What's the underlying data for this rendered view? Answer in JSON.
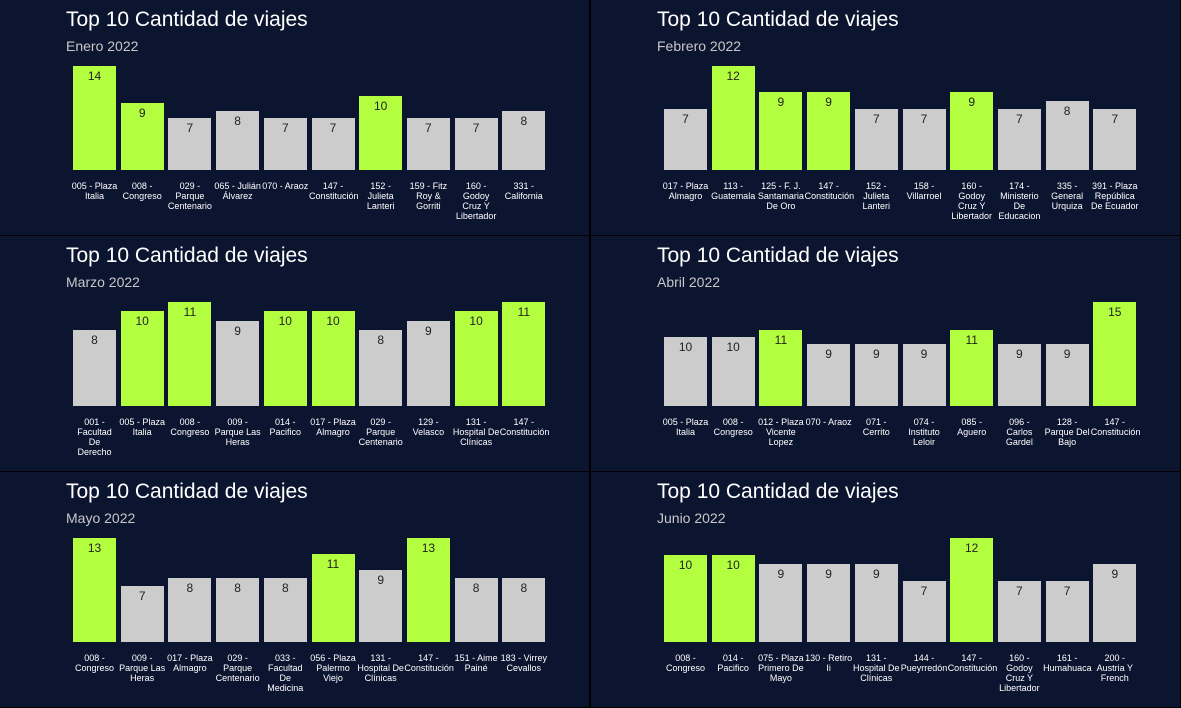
{
  "chart_data": [
    {
      "type": "bar",
      "title": "Top 10 Cantidad de viajes",
      "subtitle": "Enero 2022",
      "categories": [
        "005 - Plaza Italia",
        "008 - Congreso",
        "029 - Parque Centenario",
        "065 - Julián Álvarez",
        "070 - Araoz",
        "147 - Constitución",
        "152 - Julieta Lanteri",
        "159 - Fitz Roy & Gorriti",
        "160 - Godoy Cruz Y Libertador",
        "331 - California"
      ],
      "values": [
        14,
        9,
        7,
        8,
        7,
        7,
        10,
        7,
        7,
        8
      ],
      "colors": [
        "#b3ff3f",
        "#b3ff3f",
        "#cccccc",
        "#cccccc",
        "#cccccc",
        "#cccccc",
        "#b3ff3f",
        "#cccccc",
        "#cccccc",
        "#cccccc"
      ]
    },
    {
      "type": "bar",
      "title": "Top 10 Cantidad de viajes",
      "subtitle": "Febrero 2022",
      "categories": [
        "017 - Plaza Almagro",
        "113 - Guatemala",
        "125 - F. J. Santamaria De Oro",
        "147 - Constitución",
        "152 - Julieta Lanteri",
        "158 - Villarroel",
        "160 - Godoy Cruz Y Libertador",
        "174 - Ministerio De Educacion",
        "335 - General Urquiza",
        "391 - Plaza República De Ecuador"
      ],
      "values": [
        7,
        12,
        9,
        9,
        7,
        7,
        9,
        7,
        8,
        7
      ],
      "colors": [
        "#cccccc",
        "#b3ff3f",
        "#b3ff3f",
        "#b3ff3f",
        "#cccccc",
        "#cccccc",
        "#b3ff3f",
        "#cccccc",
        "#cccccc",
        "#cccccc"
      ]
    },
    {
      "type": "bar",
      "title": "Top 10 Cantidad de viajes",
      "subtitle": "Marzo 2022",
      "categories": [
        "001 - Facultad De Derecho",
        "005 - Plaza Italia",
        "008 - Congreso",
        "009 - Parque Las Heras",
        "014 - Pacifico",
        "017 - Plaza Almagro",
        "029 - Parque Centenario",
        "129 - Velasco",
        "131 - Hospital De Clínicas",
        "147 - Constitución"
      ],
      "values": [
        8,
        10,
        11,
        9,
        10,
        10,
        8,
        9,
        10,
        11
      ],
      "colors": [
        "#cccccc",
        "#b3ff3f",
        "#b3ff3f",
        "#cccccc",
        "#b3ff3f",
        "#b3ff3f",
        "#cccccc",
        "#cccccc",
        "#b3ff3f",
        "#b3ff3f"
      ]
    },
    {
      "type": "bar",
      "title": "Top 10 Cantidad de viajes",
      "subtitle": "Abril 2022",
      "categories": [
        "005 - Plaza Italia",
        "008 - Congreso",
        "012 - Plaza Vicente Lopez",
        "070 - Araoz",
        "071 - Cerrito",
        "074 - Instituto Leloir",
        "085 - Aguero",
        "096 - Carlos Gardel",
        "128 - Parque Del Bajo",
        "147 - Constitución"
      ],
      "values": [
        10,
        10,
        11,
        9,
        9,
        9,
        11,
        9,
        9,
        15
      ],
      "colors": [
        "#cccccc",
        "#cccccc",
        "#b3ff3f",
        "#cccccc",
        "#cccccc",
        "#cccccc",
        "#b3ff3f",
        "#cccccc",
        "#cccccc",
        "#b3ff3f"
      ]
    },
    {
      "type": "bar",
      "title": "Top 10 Cantidad de viajes",
      "subtitle": "Mayo 2022",
      "categories": [
        "008 - Congreso",
        "009 - Parque Las Heras",
        "017 - Plaza Almagro",
        "029 - Parque Centenario",
        "033 - Facultad De Medicina",
        "056 - Plaza Palermo Viejo",
        "131 - Hospital De Clínicas",
        "147 - Constitución",
        "151 - Aime Painé",
        "183 - Virrey Cevallos"
      ],
      "values": [
        13,
        7,
        8,
        8,
        8,
        11,
        9,
        13,
        8,
        8
      ],
      "colors": [
        "#b3ff3f",
        "#cccccc",
        "#cccccc",
        "#cccccc",
        "#cccccc",
        "#b3ff3f",
        "#cccccc",
        "#b3ff3f",
        "#cccccc",
        "#cccccc"
      ]
    },
    {
      "type": "bar",
      "title": "Top 10 Cantidad de viajes",
      "subtitle": "Junio 2022",
      "categories": [
        "008 - Congreso",
        "014 - Pacifico",
        "075 - Plaza Primero De Mayo",
        "130 - Retiro Ii",
        "131 - Hospital De Clínicas",
        "144 - Pueyrredón",
        "147 - Constitución",
        "160 - Godoy Cruz Y Libertador",
        "161 - Humahuaca",
        "200 - Austria Y French"
      ],
      "values": [
        10,
        10,
        9,
        9,
        9,
        7,
        12,
        7,
        7,
        9
      ],
      "colors": [
        "#b3ff3f",
        "#b3ff3f",
        "#cccccc",
        "#cccccc",
        "#cccccc",
        "#cccccc",
        "#b3ff3f",
        "#cccccc",
        "#cccccc",
        "#cccccc"
      ]
    }
  ]
}
